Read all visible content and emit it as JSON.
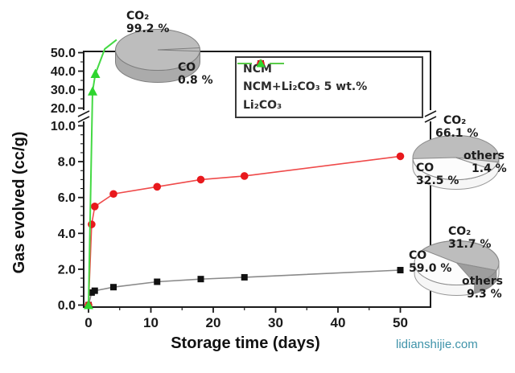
{
  "watermark": "lidianshijie.com",
  "chart_data": {
    "type": "line",
    "title": "",
    "xlabel": "Storage time (days)",
    "ylabel": "Gas evolved (cc/g)",
    "grid": false,
    "legend_position": "upper-right-inside",
    "x_axis": {
      "range": [
        0,
        55
      ],
      "major_ticks": [
        0,
        10,
        20,
        30,
        40,
        50
      ],
      "minor_ticks": [
        5,
        15,
        25,
        35,
        45
      ],
      "tick_labels": [
        "0",
        "10",
        "20",
        "30",
        "40",
        "50"
      ]
    },
    "y_axis": {
      "broken": true,
      "break_between": [
        10,
        20
      ],
      "lower_section": {
        "range": [
          0,
          10
        ],
        "major_ticks": [
          0,
          2,
          4,
          6,
          8,
          10
        ],
        "tick_labels": [
          "0.0",
          "2.0",
          "4.0",
          "6.0",
          "8.0",
          "10.0"
        ],
        "minor_step": 0.5
      },
      "upper_section": {
        "range": [
          20,
          50
        ],
        "major_ticks": [
          20,
          30,
          40,
          50
        ],
        "tick_labels": [
          "20.0",
          "30.0",
          "40.0",
          "50.0"
        ],
        "minor_ticks": [
          25,
          35,
          45
        ]
      }
    },
    "series": [
      {
        "name": "NCM",
        "marker": "square",
        "marker_color": "#111111",
        "line_color": "#8a8a8a",
        "x": [
          0,
          0.5,
          1,
          4,
          11,
          18,
          25,
          50
        ],
        "y": [
          0,
          0.7,
          0.8,
          1.0,
          1.3,
          1.45,
          1.55,
          1.95
        ]
      },
      {
        "name": "NCM+Li₂CO₃ 5 wt.%",
        "marker": "circle",
        "marker_color": "#e8191d",
        "line_color": "#ef4a4a",
        "x": [
          0,
          0.5,
          1,
          4,
          11,
          18,
          25,
          50
        ],
        "y": [
          0,
          4.5,
          5.5,
          6.2,
          6.6,
          7.0,
          7.2,
          8.3
        ]
      },
      {
        "name": "Li₂CO₃",
        "marker": "triangle",
        "marker_color": "#2ed52e",
        "line_color": "#44d944",
        "x": [
          0,
          0.65,
          1.1
        ],
        "y": [
          0,
          29,
          38.5
        ],
        "line_extension_x": [
          2.6,
          4.5
        ],
        "line_extension_y": [
          52,
          57
        ]
      }
    ],
    "pies": [
      {
        "name": "Li₂CO₃",
        "slices": [
          {
            "label": "CO₂",
            "pct": "99.2 %",
            "value": 99.2
          },
          {
            "label": "CO",
            "pct": "0.8 %",
            "value": 0.8
          }
        ]
      },
      {
        "name": "NCM+Li₂CO₃ 5 wt.%",
        "slices": [
          {
            "label": "CO₂",
            "pct": "66.1 %",
            "value": 66.1
          },
          {
            "label": "CO",
            "pct": "32.5 %",
            "value": 32.5
          },
          {
            "label": "others",
            "pct": "1.4 %",
            "value": 1.4
          }
        ]
      },
      {
        "name": "NCM",
        "slices": [
          {
            "label": "CO₂",
            "pct": "31.7 %",
            "value": 31.7
          },
          {
            "label": "CO",
            "pct": "59.0 %",
            "value": 59.0
          },
          {
            "label": "others",
            "pct": "9.3 %",
            "value": 9.3
          }
        ]
      }
    ]
  }
}
